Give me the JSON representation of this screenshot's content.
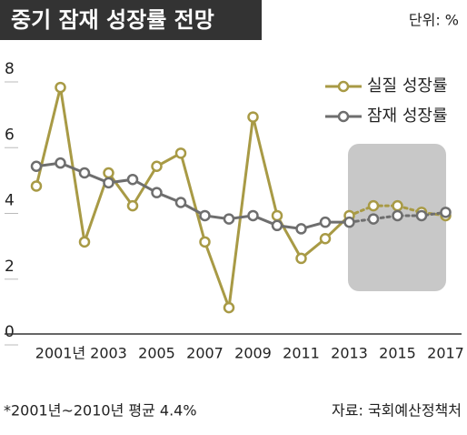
{
  "chart_data": {
    "type": "line",
    "title": "중기 잠재 성장률 전망",
    "unit": "단위: %",
    "categories": [
      null,
      "2001년",
      null,
      "2003",
      null,
      "2005",
      null,
      "2007",
      null,
      "2009",
      null,
      "2011",
      null,
      "2013",
      null,
      "2015",
      null,
      "2017"
    ],
    "series": [
      {
        "name": "실질 성장률",
        "color": "#a89a45",
        "values": [
          4.5,
          7.5,
          2.8,
          4.9,
          3.9,
          5.1,
          5.5,
          2.8,
          0.8,
          6.6,
          3.6,
          2.3,
          2.9,
          3.6,
          3.9,
          3.9,
          3.7,
          3.6
        ]
      },
      {
        "name": "잠재 성장률",
        "color": "#6e6e6e",
        "values": [
          5.1,
          5.2,
          4.9,
          4.6,
          4.7,
          4.3,
          4.0,
          3.6,
          3.5,
          3.6,
          3.3,
          3.2,
          3.4,
          3.4,
          3.5,
          3.6,
          3.6,
          3.7
        ]
      }
    ],
    "dashed_from": 13,
    "ylim": [
      0,
      8
    ],
    "yticks": [
      0,
      2,
      4,
      6,
      8
    ],
    "legend": "upper right",
    "note": "*2001년~2010년 평균 4.4%",
    "source": "자료: 국회예산정책처"
  }
}
